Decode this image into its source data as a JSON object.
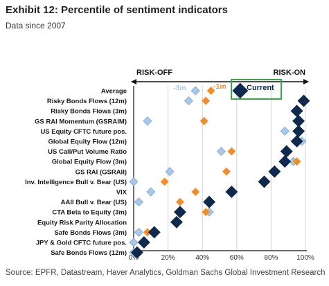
{
  "header": {
    "title": "Exhibit 12: Percentile of sentiment indicators",
    "subtitle": "Data since 2007"
  },
  "footer": {
    "source": "Source: EPFR, Datastream, Haver Analytics, Goldman Sachs Global Investment Research"
  },
  "chart_data": {
    "type": "scatter",
    "xlim": [
      0,
      100
    ],
    "x_ticks": [
      "0%",
      "20%",
      "40%",
      "60%",
      "80%",
      "100%"
    ],
    "direction_labels": {
      "left": "RISK-OFF",
      "right": "RISK-ON"
    },
    "legend_placement": "top-right",
    "categories": [
      "Average",
      "Risky Bonds Flows (12m)",
      "Risky Bonds Flows (3m)",
      "GS RAI Momentum (GSRAIM)",
      "US Equity CFTC future pos.",
      "Global Equity Flow (12m)",
      "US Call/Put Volume Ratio",
      "Global Equity Flow (3m)",
      "GS RAI (GSRAII)",
      "Inv. Intelligence Bull v. Bear (US)",
      "VIX",
      "AAII Bull v. Bear (US)",
      "CTA Beta to Equity (3m)",
      "Equity Risk Parity Allocation",
      "Safe Bonds Flows (3m)",
      "JPY & Gold CFTC future pos.",
      "Safe Bonds Flows (12m)"
    ],
    "series": [
      {
        "name": "-3m",
        "color": "#a8c8ea",
        "values": [
          36,
          32,
          94,
          8,
          88,
          98,
          51,
          93,
          21,
          0,
          10,
          3,
          44,
          25,
          3,
          0,
          0
        ]
      },
      {
        "name": "-1m",
        "color": "#f28c28",
        "values": [
          45,
          42,
          96,
          41,
          95,
          96,
          57,
          95,
          54,
          18,
          36,
          27,
          42,
          24,
          8,
          5,
          2
        ]
      },
      {
        "name": "Current",
        "color": "#0f2a4f",
        "values": [
          62,
          99,
          95,
          96,
          96,
          95,
          89,
          88,
          82,
          76,
          57,
          44,
          27,
          25,
          12,
          6,
          2
        ]
      }
    ]
  }
}
